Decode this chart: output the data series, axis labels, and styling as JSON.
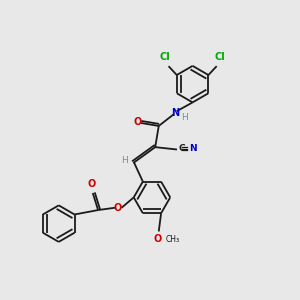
{
  "background_color": "#e8e8e8",
  "bond_color": "#1a1a1a",
  "atom_colors": {
    "C": "#1a1a1a",
    "N": "#0000cc",
    "O": "#cc0000",
    "Cl": "#00aa00",
    "H": "#5a9a9a"
  },
  "figsize": [
    3.0,
    3.0
  ],
  "dpi": 100,
  "lw": 1.3,
  "ring_r": 0.62
}
